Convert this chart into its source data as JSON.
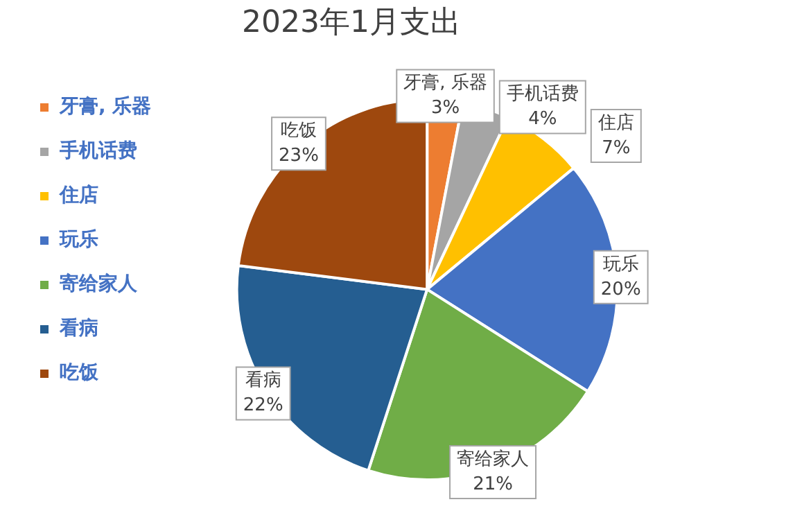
{
  "chart_data": {
    "type": "pie",
    "title": "2023年1月支出",
    "categories": [
      "牙膏, 乐器",
      "手机话费",
      "住店",
      "玩乐",
      "寄给家人",
      "看病",
      "吃饭"
    ],
    "values": [
      3,
      4,
      7,
      20,
      21,
      22,
      23
    ],
    "value_labels": [
      "3%",
      "4%",
      "7%",
      "20%",
      "21%",
      "22%",
      "23%"
    ],
    "colors": [
      "#ed7d31",
      "#a5a5a5",
      "#ffc000",
      "#4472c4",
      "#70ad47",
      "#255e91",
      "#9e480e"
    ],
    "legend": "left"
  }
}
